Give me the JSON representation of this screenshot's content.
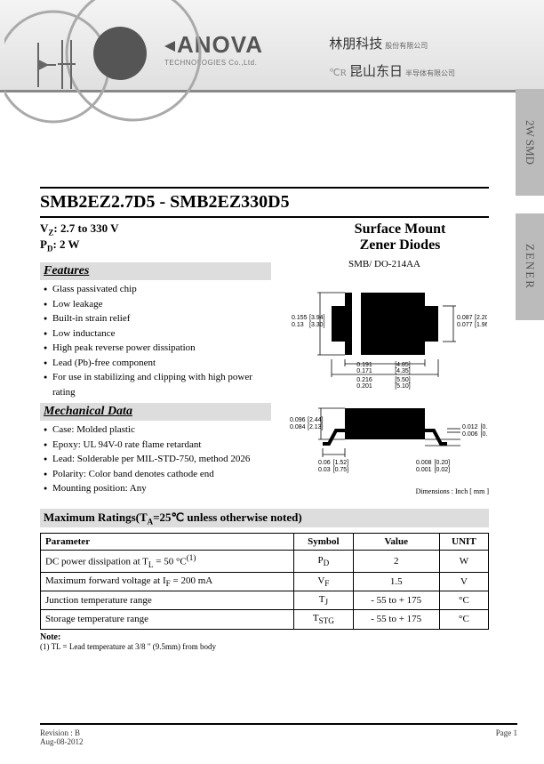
{
  "header": {
    "logo_main": "ANOVA",
    "logo_sub": "TECHNOLOGIES Co.,Ltd.",
    "cjk_line1_main": "林朋科技",
    "cjk_line1_small": "股份有限公司",
    "cjk_line2_prefix": "℃R",
    "cjk_line2_main": "昆山东日",
    "cjk_line2_small": "半导体有限公司"
  },
  "side_tabs": {
    "tab1": "2W SMD",
    "tab2": "ZENER"
  },
  "title": {
    "part_from": "SMB2EZ2.7D5",
    "dash": " - ",
    "part_to": "SMB2EZ330D5"
  },
  "specs": {
    "vz_label": "V",
    "vz_sub": "Z",
    "vz_val": ": 2.7 to 330 V",
    "pd_label": "P",
    "pd_sub": "D",
    "pd_val": ": 2 W",
    "product_name_l1": "Surface Mount",
    "product_name_l2": "Zener Diodes"
  },
  "features": {
    "heading": "Features",
    "items": [
      "Glass passivated chip",
      "Low leakage",
      "Built-in strain relief",
      "Low inductance",
      "High peak reverse power dissipation",
      "Lead (Pb)-free component",
      "For use in stabilizing and clipping with high power rating"
    ]
  },
  "mechanical": {
    "heading": "Mechanical Data",
    "items": [
      "Case: Molded plastic",
      "Epoxy: UL 94V-0 rate flame retardant",
      "Lead: Solderable per MIL-STD-750, method 2026",
      "Polarity: Color band denotes cathode end",
      "Mounting position: Any"
    ]
  },
  "package": {
    "label": "SMB/ DO-214AA",
    "dims_note": "Dimensions : Inch [ mm ]",
    "top": {
      "h_in_max": "0.155",
      "h_in_min": "0.13",
      "h_mm_max": "3.94",
      "h_mm_min": "3.30",
      "w_in_max": "0.087",
      "w_in_min": "0.077",
      "w_mm_max": "2.20",
      "w_mm_min": "1.96",
      "body_in_max": "0.191",
      "body_in_min": "0.171",
      "body_mm_max": "4.85",
      "body_mm_min": "4.35",
      "total_in_max": "0.216",
      "total_in_min": "0.201",
      "total_mm_max": "5.50",
      "total_mm_min": "5.10"
    },
    "side": {
      "h_in_max": "0.096",
      "h_in_min": "0.084",
      "h_mm_max": "2.44",
      "h_mm_min": "2.13",
      "lead_in_max": "0.012",
      "lead_in_min": "0.006",
      "lead_mm_max": "0.30",
      "lead_mm_min": "0.15",
      "foot_in_max": "0.06",
      "foot_in_min": "0.03",
      "foot_mm_max": "1.52",
      "foot_mm_min": "0.75",
      "stand_in_max": "0.008",
      "stand_in_min": "0.001",
      "stand_mm_max": "0.20",
      "stand_mm_min": "0.02"
    }
  },
  "ratings": {
    "heading_pre": "Maximum Ratings(T",
    "heading_sub": "A",
    "heading_post": "=25℃ unless otherwise noted)",
    "columns": [
      "Parameter",
      "Symbol",
      "Value",
      "UNIT"
    ],
    "rows": [
      {
        "param": "DC power dissipation at T",
        "param_sub": "L",
        "param_post": " = 50 °C",
        "param_sup": "(1)",
        "symbol": "P",
        "symbol_sub": "D",
        "value": "2",
        "unit": "W"
      },
      {
        "param": "Maximum forward voltage at I",
        "param_sub": "F",
        "param_post": " = 200 mA",
        "symbol": "V",
        "symbol_sub": "F",
        "value": "1.5",
        "unit": "V"
      },
      {
        "param": "Junction temperature range",
        "symbol": "T",
        "symbol_sub": "J",
        "value": "- 55 to + 175",
        "unit": "°C"
      },
      {
        "param": "Storage temperature range",
        "symbol": "T",
        "symbol_sub": "STG",
        "value": "- 55 to + 175",
        "unit": "°C"
      }
    ],
    "note_head": "Note:",
    "note_body": "(1) TL = Lead temperature at 3/8 \" (9.5mm) from body"
  },
  "footer": {
    "rev": "Revision : B",
    "date": "Aug-08-2012",
    "page": "Page 1"
  },
  "style": {
    "band_border": "#888",
    "tab_bg": "#bbb",
    "section_bg": "#ddd"
  }
}
